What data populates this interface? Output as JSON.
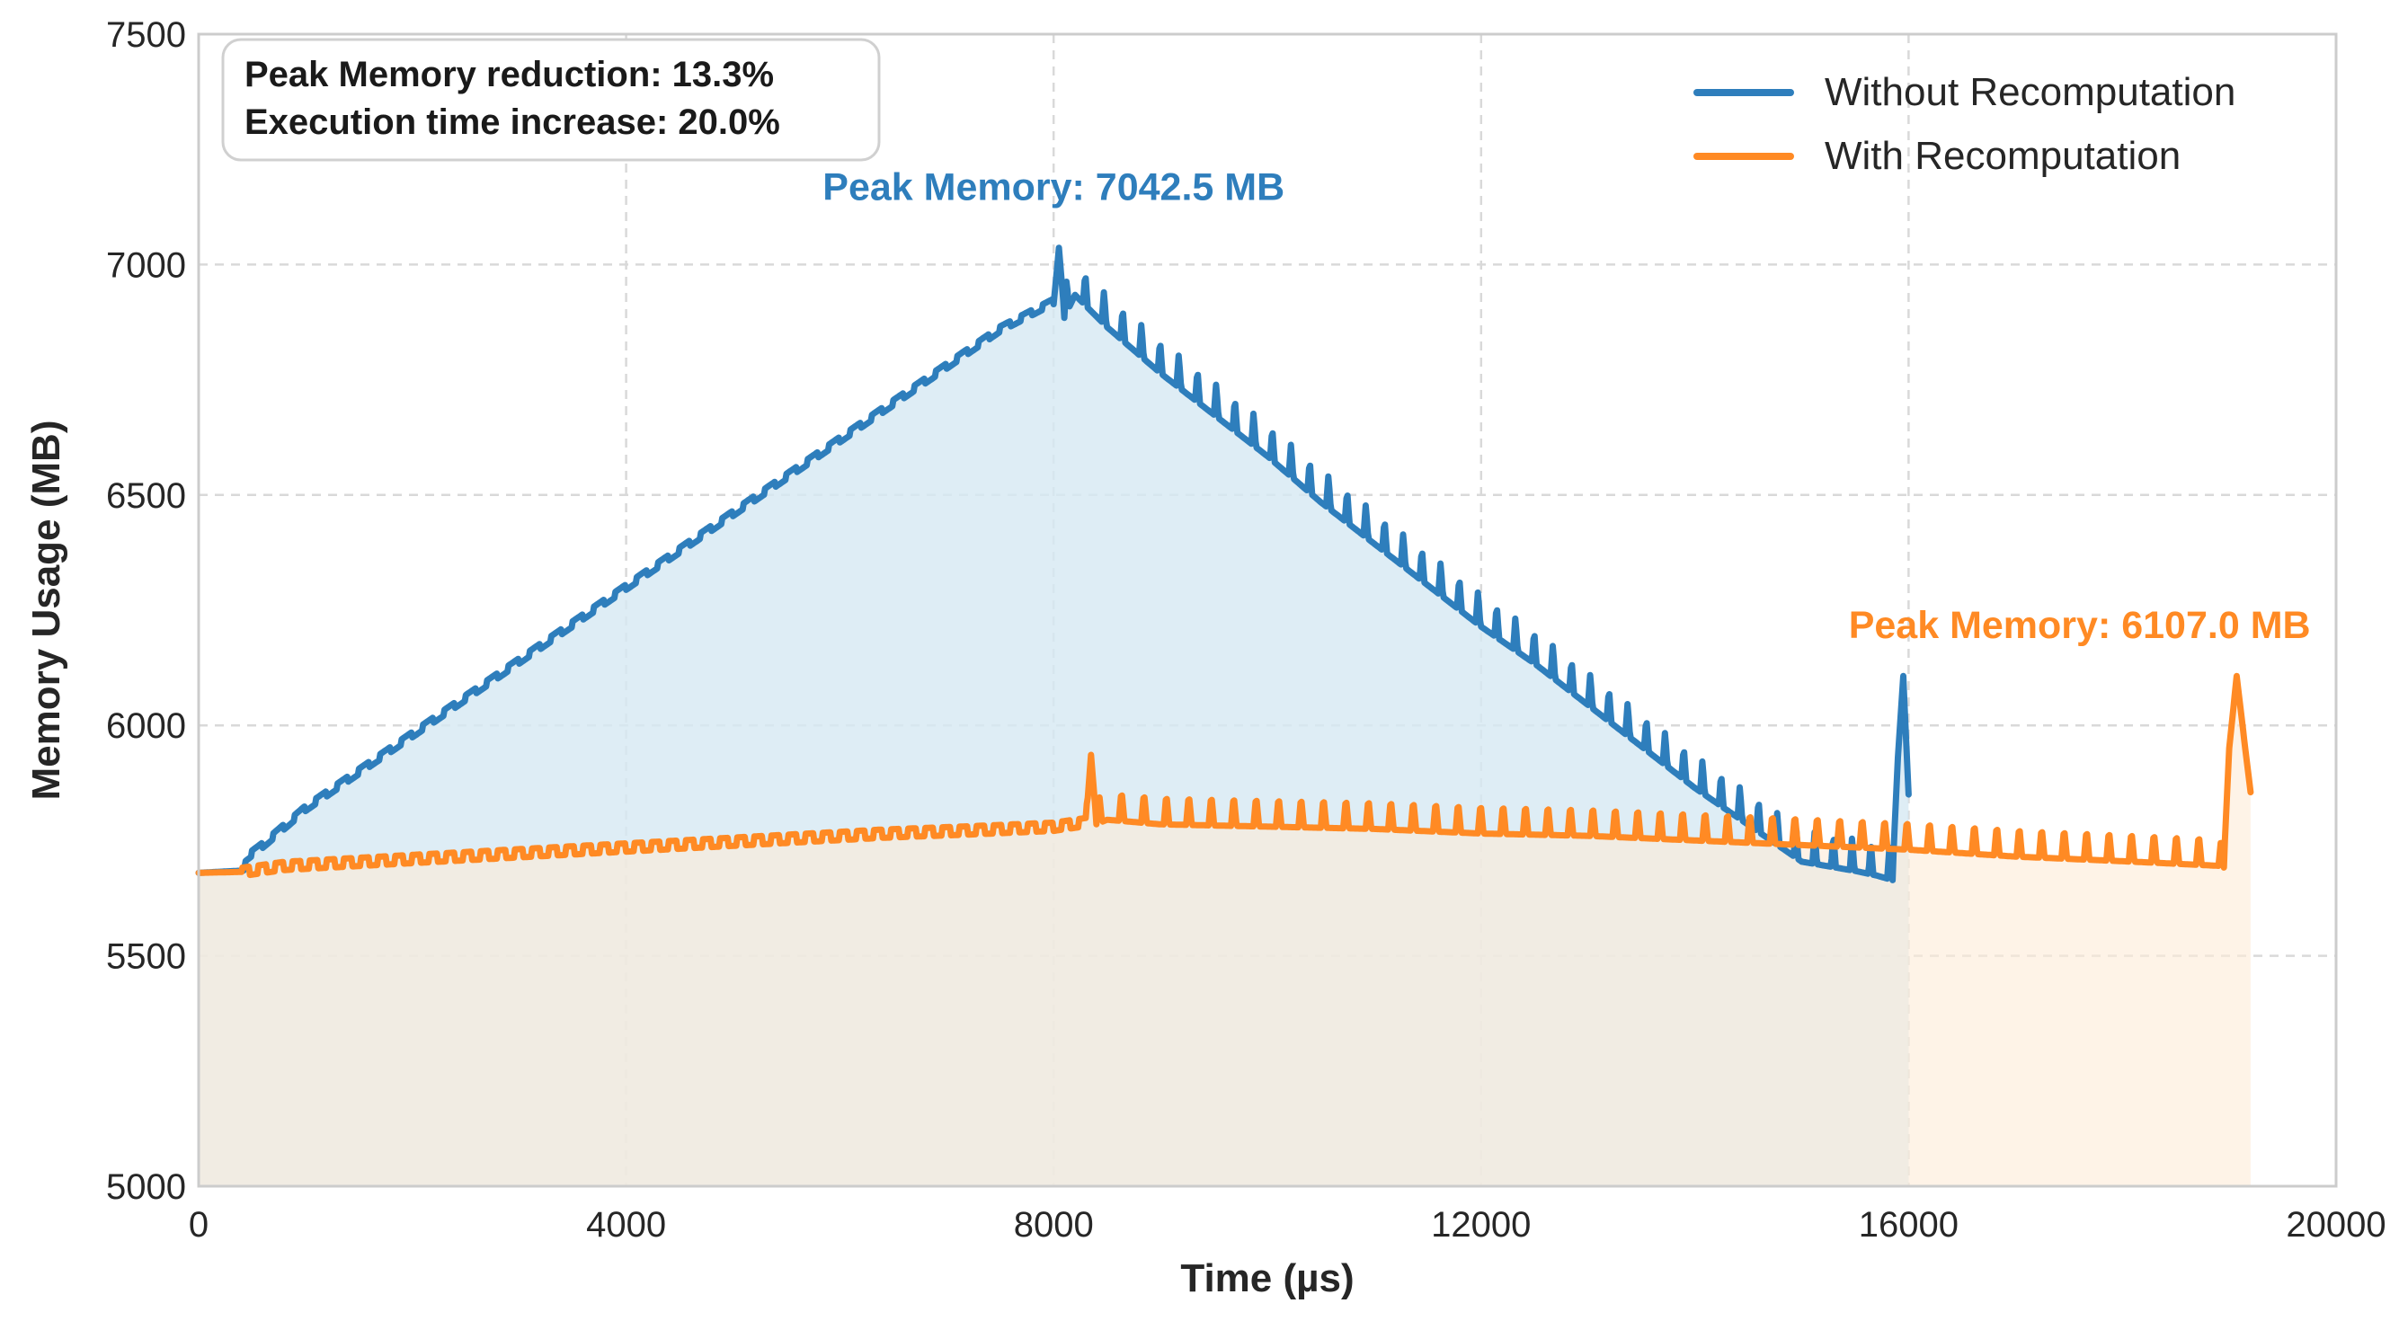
{
  "chart_data": {
    "type": "line",
    "title": "",
    "xlabel": "Time (µs)",
    "ylabel": "Memory Usage (MB)",
    "xlim": [
      0,
      20000
    ],
    "ylim": [
      5000,
      7500
    ],
    "x_ticks": [
      0,
      4000,
      8000,
      12000,
      16000,
      20000
    ],
    "x_tick_labels": [
      "0",
      "4000",
      "8000",
      "12000",
      "16000",
      "20000"
    ],
    "y_ticks": [
      5000,
      5500,
      6000,
      6500,
      7000,
      7500
    ],
    "y_tick_labels": [
      "5000",
      "5500",
      "6000",
      "6500",
      "7000",
      "7500"
    ],
    "grid": true,
    "legend_position": "top-right",
    "stats_box": {
      "line1": "Peak Memory reduction: 13.3%",
      "line2": "Execution time increase: 20.0%"
    },
    "series": [
      {
        "name": "Without Recomputation",
        "color": "#2e7ebc",
        "fill_color": "#d6e8f2",
        "peak_label": "Peak Memory: 7042.5 MB",
        "peak_value": 7042.5,
        "peak_time": 8050,
        "label_anchor": [
          8000,
          7140
        ],
        "x": [
          0,
          420,
          440,
          600,
          1000,
          1500,
          2000,
          2500,
          3000,
          3500,
          4000,
          4500,
          5000,
          5500,
          6000,
          6500,
          7000,
          7500,
          8000,
          8050,
          8100,
          8200,
          8500,
          9000,
          9500,
          10000,
          10500,
          11000,
          11500,
          12000,
          12500,
          13000,
          13500,
          14000,
          14500,
          15000,
          15500,
          15700,
          15850,
          15900,
          15950,
          16000
        ],
        "values": [
          5680,
          5685,
          5712,
          5740,
          5820,
          5900,
          5980,
          6060,
          6140,
          6220,
          6300,
          6380,
          6460,
          6540,
          6620,
          6700,
          6780,
          6860,
          6920,
          7042.5,
          6900,
          6950,
          6880,
          6780,
          6690,
          6600,
          6500,
          6410,
          6320,
          6230,
          6150,
          6060,
          5970,
          5880,
          5800,
          5720,
          5700,
          5690,
          5680,
          5930,
          6107,
          5850
        ],
        "oscillation_start": 8100,
        "oscillation_end": 15850,
        "oscillation_period": 175,
        "oscillation_amplitude": 45,
        "staircase_period": 200,
        "staircase_step": 12
      },
      {
        "name": "With Recomputation",
        "color": "#ff8a24",
        "fill_color": "#fdebd7",
        "peak_label": "Peak Memory: 6107.0 MB",
        "peak_value": 6107.0,
        "peak_time": 19070,
        "label_anchor": [
          17600,
          6190
        ],
        "x": [
          0,
          400,
          800,
          1600,
          2400,
          3200,
          4000,
          4800,
          5600,
          6400,
          7200,
          8000,
          8300,
          8350,
          8400,
          8500,
          9000,
          10000,
          11000,
          12000,
          13000,
          14000,
          15000,
          16000,
          17000,
          18000,
          18900,
          18950,
          19000,
          19070,
          19150,
          19200
        ],
        "values": [
          5680,
          5682,
          5695,
          5705,
          5715,
          5725,
          5735,
          5745,
          5755,
          5765,
          5772,
          5780,
          5790,
          5945,
          5800,
          5810,
          5800,
          5795,
          5790,
          5780,
          5775,
          5765,
          5755,
          5745,
          5730,
          5720,
          5710,
          5700,
          5950,
          6107,
          5950,
          5855
        ],
        "oscillation_start": 8400,
        "oscillation_end": 18950,
        "oscillation_period": 210,
        "oscillation_amplitude": 42,
        "staircase_period": 160,
        "staircase_step": 18
      }
    ]
  }
}
